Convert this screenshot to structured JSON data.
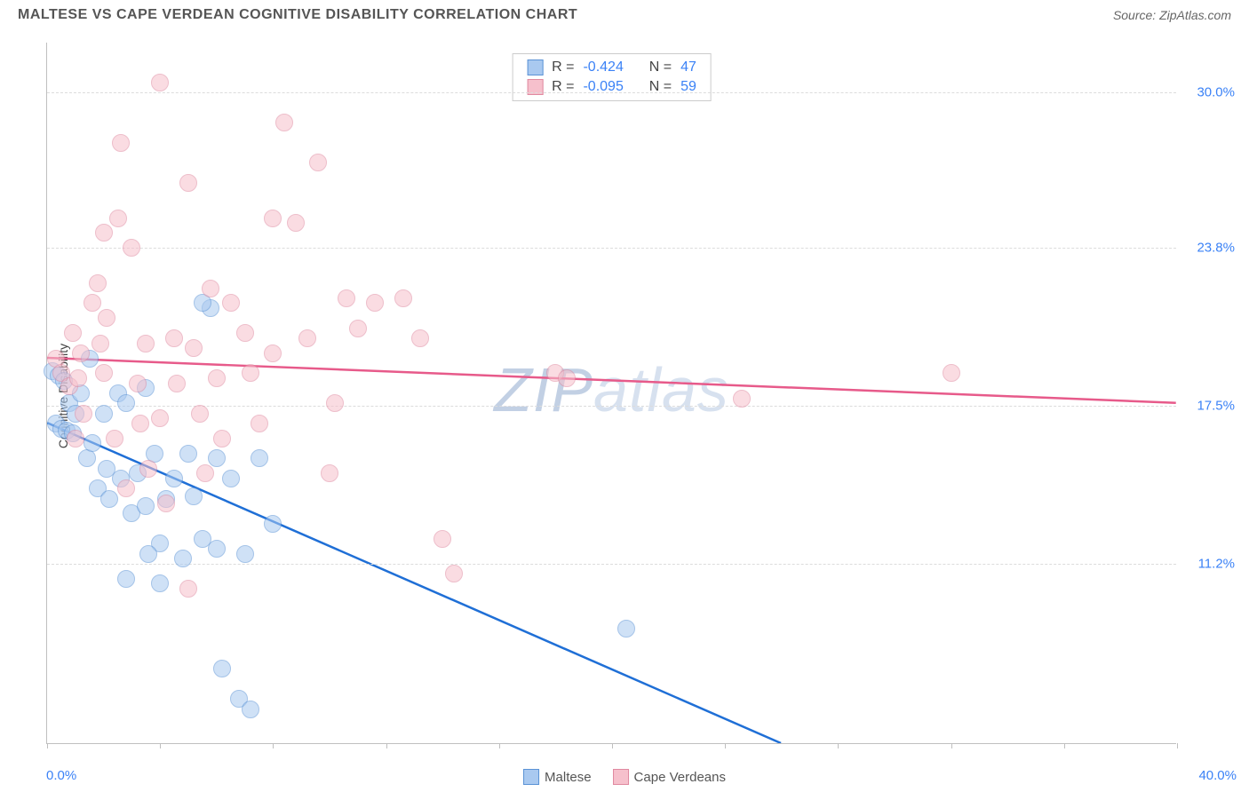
{
  "title": "MALTESE VS CAPE VERDEAN COGNITIVE DISABILITY CORRELATION CHART",
  "source": "Source: ZipAtlas.com",
  "yaxis_title": "Cognitive Disability",
  "watermark": {
    "zip": "ZIP",
    "atlas": "atlas"
  },
  "chart": {
    "type": "scatter",
    "xlim": [
      0,
      40
    ],
    "ylim": [
      4,
      32
    ],
    "background_color": "#ffffff",
    "grid_color": "#dcdcdc",
    "axis_color": "#bfbfbf",
    "tick_color": "#3b82f6",
    "label_fontsize": 15,
    "marker_radius": 10,
    "marker_opacity": 0.55,
    "ygrid": [
      {
        "value": 30.0,
        "label": "30.0%"
      },
      {
        "value": 23.8,
        "label": "23.8%"
      },
      {
        "value": 17.5,
        "label": "17.5%"
      },
      {
        "value": 11.2,
        "label": "11.2%"
      }
    ],
    "xticks": [
      0,
      4,
      8,
      12,
      16,
      20,
      24,
      28,
      32,
      36,
      40
    ],
    "xlabel_min": "0.0%",
    "xlabel_max": "40.0%",
    "series": [
      {
        "name": "Maltese",
        "fill": "#a9c9f0",
        "stroke": "#5b93d6",
        "regression_color": "#1f6fd6",
        "regression_width": 2.5,
        "regression": {
          "x1": 0,
          "y1": 16.8,
          "x2": 26,
          "y2": 4.0
        },
        "R": "-0.424",
        "N": "47",
        "points": [
          [
            0.2,
            18.9
          ],
          [
            0.4,
            18.7
          ],
          [
            0.6,
            18.5
          ],
          [
            0.3,
            16.8
          ],
          [
            0.5,
            16.6
          ],
          [
            0.7,
            16.5
          ],
          [
            0.9,
            16.4
          ],
          [
            0.8,
            17.6
          ],
          [
            1.0,
            17.2
          ],
          [
            1.2,
            18.0
          ],
          [
            1.4,
            15.4
          ],
          [
            1.5,
            19.4
          ],
          [
            1.6,
            16.0
          ],
          [
            1.8,
            14.2
          ],
          [
            2.0,
            17.2
          ],
          [
            2.1,
            15.0
          ],
          [
            2.2,
            13.8
          ],
          [
            2.5,
            18.0
          ],
          [
            2.6,
            14.6
          ],
          [
            2.8,
            17.6
          ],
          [
            3.0,
            13.2
          ],
          [
            3.2,
            14.8
          ],
          [
            3.5,
            18.2
          ],
          [
            3.5,
            13.5
          ],
          [
            3.8,
            15.6
          ],
          [
            4.0,
            12.0
          ],
          [
            4.2,
            13.8
          ],
          [
            4.5,
            14.6
          ],
          [
            4.8,
            11.4
          ],
          [
            5.0,
            15.6
          ],
          [
            5.2,
            13.9
          ],
          [
            5.5,
            12.2
          ],
          [
            5.8,
            21.4
          ],
          [
            6.0,
            11.8
          ],
          [
            6.0,
            15.4
          ],
          [
            6.2,
            7.0
          ],
          [
            6.5,
            14.6
          ],
          [
            6.8,
            5.8
          ],
          [
            7.0,
            11.6
          ],
          [
            7.2,
            5.4
          ],
          [
            7.5,
            15.4
          ],
          [
            8.0,
            12.8
          ],
          [
            2.8,
            10.6
          ],
          [
            3.6,
            11.6
          ],
          [
            5.5,
            21.6
          ],
          [
            4.0,
            10.4
          ],
          [
            20.5,
            8.6
          ]
        ]
      },
      {
        "name": "Cape Verdeans",
        "fill": "#f6c0cc",
        "stroke": "#e089a0",
        "regression_color": "#e75a8a",
        "regression_width": 2.5,
        "regression": {
          "x1": 0,
          "y1": 19.4,
          "x2": 40,
          "y2": 17.6
        },
        "R": "-0.095",
        "N": "59",
        "points": [
          [
            0.3,
            19.4
          ],
          [
            0.5,
            18.8
          ],
          [
            0.8,
            18.3
          ],
          [
            0.9,
            20.4
          ],
          [
            1.0,
            16.2
          ],
          [
            1.1,
            18.6
          ],
          [
            1.2,
            19.6
          ],
          [
            1.3,
            17.2
          ],
          [
            1.6,
            21.6
          ],
          [
            1.8,
            22.4
          ],
          [
            1.9,
            20.0
          ],
          [
            2.0,
            18.8
          ],
          [
            2.0,
            24.4
          ],
          [
            2.1,
            21.0
          ],
          [
            2.4,
            16.2
          ],
          [
            2.5,
            25.0
          ],
          [
            2.6,
            28.0
          ],
          [
            2.8,
            14.2
          ],
          [
            3.0,
            23.8
          ],
          [
            3.2,
            18.4
          ],
          [
            3.3,
            16.8
          ],
          [
            3.5,
            20.0
          ],
          [
            3.6,
            15.0
          ],
          [
            4.0,
            17.0
          ],
          [
            4.0,
            30.4
          ],
          [
            4.2,
            13.6
          ],
          [
            4.5,
            20.2
          ],
          [
            4.6,
            18.4
          ],
          [
            5.0,
            26.4
          ],
          [
            5.2,
            19.8
          ],
          [
            5.4,
            17.2
          ],
          [
            5.6,
            14.8
          ],
          [
            5.8,
            22.2
          ],
          [
            6.0,
            18.6
          ],
          [
            6.2,
            16.2
          ],
          [
            6.5,
            21.6
          ],
          [
            7.0,
            20.4
          ],
          [
            7.2,
            18.8
          ],
          [
            7.5,
            16.8
          ],
          [
            8.0,
            19.6
          ],
          [
            8.0,
            25.0
          ],
          [
            8.4,
            28.8
          ],
          [
            8.8,
            24.8
          ],
          [
            9.2,
            20.2
          ],
          [
            9.6,
            27.2
          ],
          [
            10.0,
            14.8
          ],
          [
            10.2,
            17.6
          ],
          [
            10.6,
            21.8
          ],
          [
            11.0,
            20.6
          ],
          [
            11.6,
            21.6
          ],
          [
            12.6,
            21.8
          ],
          [
            13.2,
            20.2
          ],
          [
            14.0,
            12.2
          ],
          [
            14.4,
            10.8
          ],
          [
            18.0,
            18.8
          ],
          [
            18.4,
            18.6
          ],
          [
            24.6,
            17.8
          ],
          [
            32.0,
            18.8
          ],
          [
            5.0,
            10.2
          ]
        ]
      }
    ]
  },
  "legend": {
    "series1": "Maltese",
    "series2": "Cape Verdeans"
  }
}
